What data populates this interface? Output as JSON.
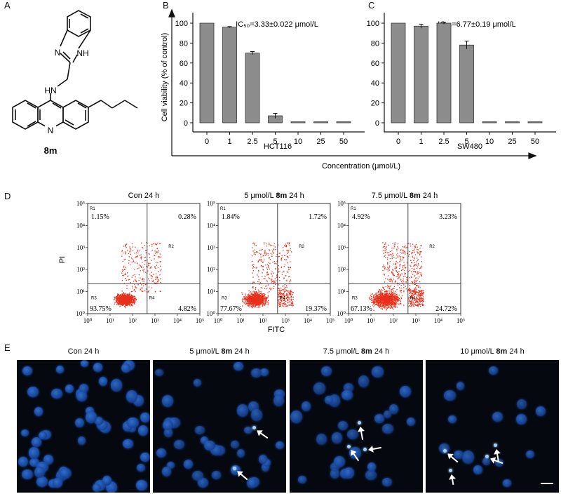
{
  "panels": {
    "A": "A",
    "B": "B",
    "C": "C",
    "D": "D",
    "E": "E"
  },
  "compound": {
    "label": "8m",
    "hn": "HN",
    "nh": "NH",
    "n_imid": "N"
  },
  "viability": {
    "ylabel": "Cell viability (% of control)",
    "xlabel": "Concentration (μmol/L)",
    "yticks": [
      0,
      20,
      40,
      60,
      80,
      100
    ],
    "categories": [
      "0",
      "1",
      "2.5",
      "5",
      "10",
      "25",
      "50"
    ]
  },
  "chart_data": [
    {
      "type": "bar",
      "name": "HCT116",
      "cell_line": "HCT116",
      "ic50": "IC₅₀=3.33±0.022 μmol/L",
      "categories": [
        "0",
        "1",
        "2.5",
        "5",
        "10",
        "25",
        "50"
      ],
      "values": [
        100,
        96,
        70,
        7,
        1,
        1,
        1
      ],
      "errors": [
        0,
        0.6,
        1.5,
        2.5,
        0.3,
        0.3,
        0.3
      ],
      "ylim": [
        0,
        100
      ]
    },
    {
      "type": "bar",
      "name": "SW480",
      "cell_line": "SW480",
      "ic50": "IC₅₀=6.77±0.19 μmol/L",
      "categories": [
        "0",
        "1",
        "2.5",
        "5",
        "10",
        "25",
        "50"
      ],
      "values": [
        100,
        97,
        100,
        78,
        1,
        1,
        1
      ],
      "errors": [
        0,
        2,
        1,
        4,
        0.3,
        0.3,
        0.3
      ],
      "ylim": [
        0,
        100
      ]
    }
  ],
  "flow": {
    "ylabel": "PI",
    "xlabel": "FITC",
    "xticks": [
      "10⁰",
      "10¹",
      "10²",
      "10³",
      "10⁴",
      "10⁵"
    ],
    "yticks": [
      "10⁰",
      "10¹",
      "10²",
      "10³",
      "10⁴",
      "10⁵"
    ],
    "regions": {
      "r1": "R1",
      "r2": "R2",
      "r3": "R3",
      "r4": "R4"
    },
    "plots": [
      {
        "title_pre": "Con 24 h",
        "title_bold": "",
        "title_post": "",
        "ul": "1.15%",
        "ur": "0.28%",
        "ll": "93.75%",
        "lr": "4.82%"
      },
      {
        "title_pre": "5 μmol/L ",
        "title_bold": "8m",
        "title_post": " 24 h",
        "ul": "1.84%",
        "ur": "1.72%",
        "ll": "77.67%",
        "lr": "19.37%"
      },
      {
        "title_pre": "7.5 μmol/L ",
        "title_bold": "8m",
        "title_post": " 24 h",
        "ul": "4.92%",
        "ur": "3.23%",
        "ll": "67.13%",
        "lr": "24.72%"
      }
    ]
  },
  "microscopy": [
    {
      "title_pre": "Con 24 h",
      "title_bold": "",
      "title_post": ""
    },
    {
      "title_pre": "5 μmol/L ",
      "title_bold": "8m",
      "title_post": " 24 h"
    },
    {
      "title_pre": "7.5 μmol/L ",
      "title_bold": "8m",
      "title_post": " 24 h"
    },
    {
      "title_pre": "10 μmol/L ",
      "title_bold": "8m",
      "title_post": " 24 h"
    }
  ],
  "colors": {
    "bar": "#8c8c8c",
    "dot": "#e8301c",
    "nucleus": "#1b4aa0"
  }
}
